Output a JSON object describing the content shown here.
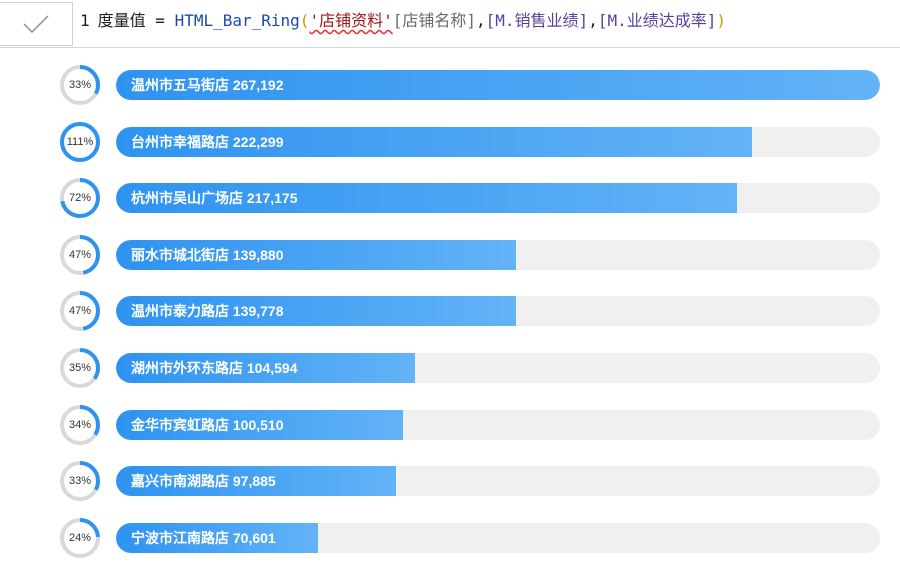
{
  "formula": {
    "line_number": "1",
    "measure_name": "度量值",
    "op": " = ",
    "func": "HTML_Bar_Ring",
    "arg_string": "'店铺资料'",
    "arg_col": "[店铺名称]",
    "arg_meas1": "[M.销售业绩]",
    "arg_meas2": "[M.业绩达成率]"
  },
  "colors": {
    "bar_fill_start": "#2e93f0",
    "bar_fill_end": "#63b3f7",
    "track": "#f0f0f0",
    "ring_active": "#2e93f0",
    "ring_track": "#d9d9d9"
  },
  "chart_data": {
    "type": "bar",
    "orientation": "horizontal",
    "max_value": 267192,
    "categories": [
      "温州市五马街店",
      "台州市幸福路店",
      "杭州市吴山广场店",
      "丽水市城北街店",
      "温州市泰力路店",
      "湖州市外环东路店",
      "金华市宾虹路店",
      "嘉兴市南湖路店",
      "宁波市江南路店"
    ],
    "values": [
      267192,
      222299,
      217175,
      139880,
      139778,
      104594,
      100510,
      97885,
      70601
    ],
    "value_labels": [
      "267,192",
      "222,299",
      "217,175",
      "139,880",
      "139,778",
      "104,594",
      "100,510",
      "97,885",
      "70,601"
    ],
    "ring_percent": [
      33,
      111,
      72,
      47,
      47,
      35,
      34,
      33,
      24
    ],
    "ring_labels": [
      "33%",
      "111%",
      "72%",
      "47%",
      "47%",
      "35%",
      "34%",
      "33%",
      "24%"
    ]
  }
}
